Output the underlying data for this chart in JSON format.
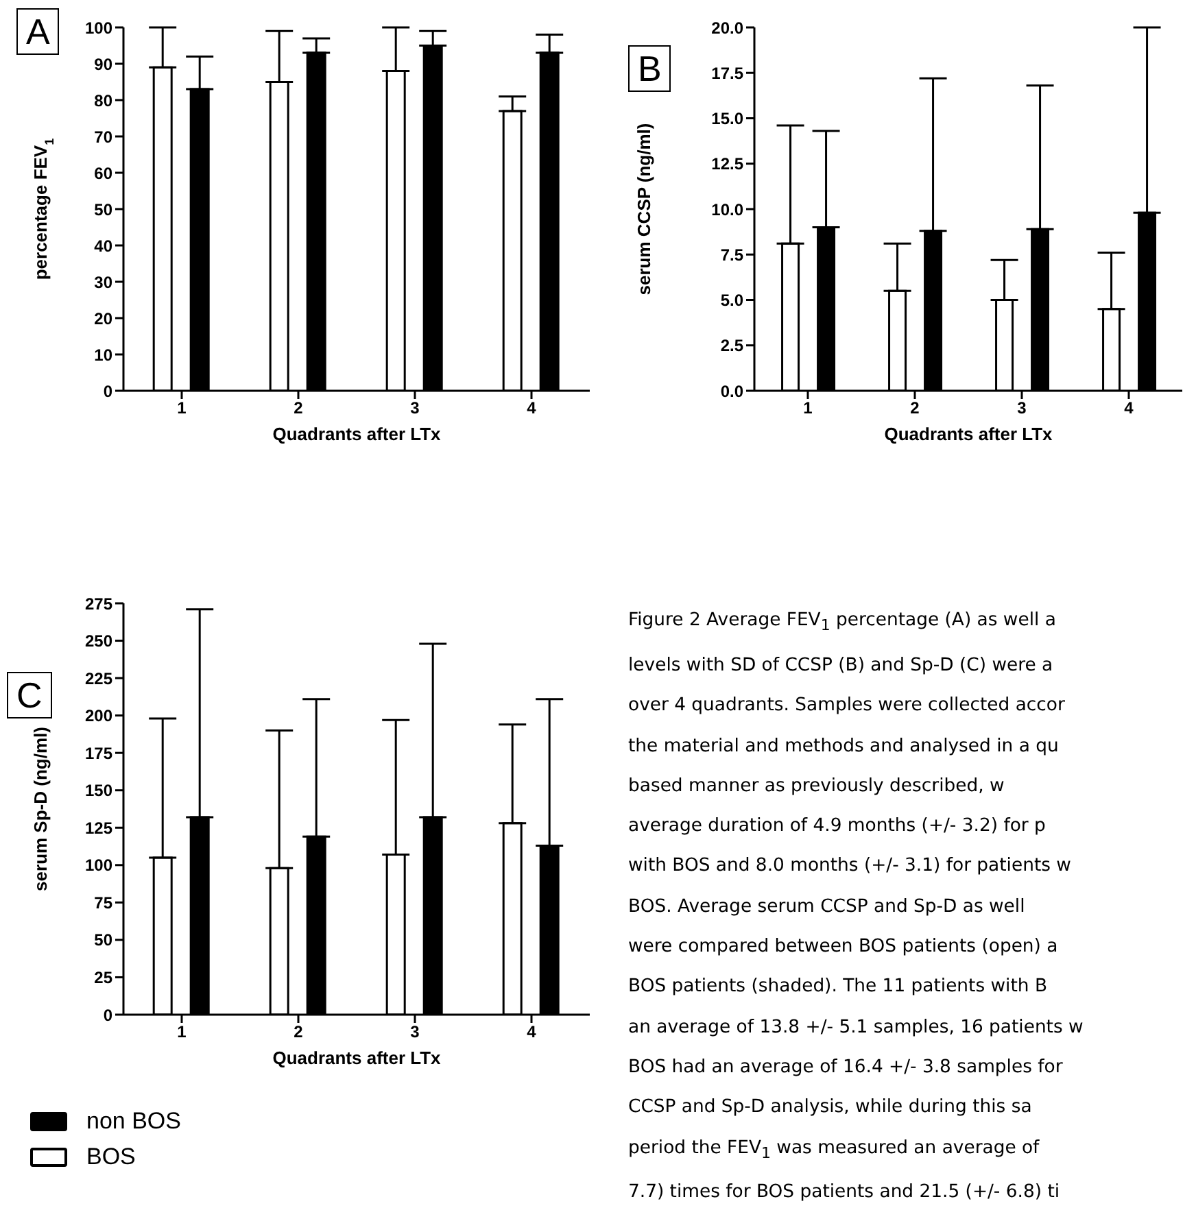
{
  "chart_data": [
    {
      "type": "bar",
      "title": "A",
      "categories": [
        "1",
        "2",
        "3",
        "4"
      ],
      "xlabel": "Quadrants after LTx",
      "ylabel": "percentage FEV$_{1}$",
      "ylim": [
        0,
        100
      ],
      "yticks": [
        0,
        10,
        20,
        30,
        40,
        50,
        60,
        70,
        80,
        90,
        100
      ],
      "series": [
        {
          "color": "#ffffff",
          "values": [
            89,
            85,
            88,
            77
          ],
          "errors": [
            [
              89,
              100
            ],
            [
              85,
              99
            ],
            [
              88,
              100
            ],
            [
              77,
              81
            ]
          ]
        },
        {
          "color": "#000000",
          "values": [
            83,
            93,
            95,
            93
          ],
          "errors": [
            [
              83,
              92
            ],
            [
              93,
              97
            ],
            [
              95,
              99
            ],
            [
              93,
              98
            ]
          ]
        }
      ]
    },
    {
      "type": "bar",
      "title": "B",
      "categories": [
        "1",
        "2",
        "3",
        "4"
      ],
      "xlabel": "Quadrants after LTx",
      "ylabel": "serum CCSP (ng/ml)",
      "ylim": [
        0,
        20
      ],
      "yticks": [
        {
          "value": 0,
          "label": "0.0"
        },
        {
          "value": 2.5,
          "label": "2.5"
        },
        {
          "value": 5,
          "label": "5.0"
        },
        {
          "value": 7.5,
          "label": "7.5"
        },
        {
          "value": 10,
          "label": "10.0"
        },
        {
          "value": 12.5,
          "label": "12.5"
        },
        {
          "value": 15,
          "label": "15.0"
        },
        {
          "value": 17.5,
          "label": "17.5"
        },
        {
          "value": 20,
          "label": "20.0"
        }
      ],
      "series": [
        {
          "color": "#ffffff",
          "values": [
            8.1,
            5.5,
            5.0,
            4.5
          ],
          "errors": [
            [
              8.1,
              14.6
            ],
            [
              5.5,
              8.1
            ],
            [
              5.0,
              7.2
            ],
            [
              4.5,
              7.6
            ]
          ]
        },
        {
          "color": "#000000",
          "values": [
            9.0,
            8.8,
            8.9,
            9.8
          ],
          "errors": [
            [
              9.0,
              14.3
            ],
            [
              8.8,
              17.2
            ],
            [
              8.9,
              16.8
            ],
            [
              9.8,
              20.0
            ]
          ]
        }
      ]
    },
    {
      "type": "bar",
      "title": "C",
      "categories": [
        "1",
        "2",
        "3",
        "4"
      ],
      "xlabel": "Quadrants after LTx",
      "ylabel": "serum Sp-D (ng/ml)",
      "ylim": [
        0,
        275
      ],
      "yticks": [
        0,
        25,
        50,
        75,
        100,
        125,
        150,
        175,
        200,
        225,
        250,
        275
      ],
      "legend": "bottom left",
      "series": [
        {
          "name": "BOS",
          "color": "#ffffff",
          "values": [
            105,
            98,
            107,
            128
          ],
          "errors": [
            [
              105,
              198
            ],
            [
              98,
              190
            ],
            [
              107,
              197
            ],
            [
              128,
              194
            ]
          ]
        },
        {
          "name": "non BOS",
          "color": "#000000",
          "values": [
            132,
            119,
            132,
            113
          ],
          "errors": [
            [
              132,
              271
            ],
            [
              119,
              211
            ],
            [
              132,
              248
            ],
            [
              113,
              211
            ]
          ]
        }
      ]
    },
    {
      "type": "other",
      "annotations": [
        "Figure 2 Average FEV$_{1}$ percentage (A) as well a",
        "levels with SD of CCSP (B) and Sp-D (C) were a",
        "over 4 quadrants. Samples were collected accor",
        "the material and methods and analysed in a qu",
        "based manner as previously described, w",
        "average duration of 4.9 months (+/- 3.2) for p",
        "with BOS and 8.0 months (+/- 3.1) for patients w",
        "BOS. Average serum CCSP and Sp-D as well",
        "were compared between BOS patients (open) a",
        "BOS patients (shaded). The 11 patients with B",
        "an average of 13.8 +/- 5.1 samples, 16 patients w",
        "BOS had an average of 16.4 +/- 3.8 samples for",
        "CCSP and Sp-D analysis, while during this sa",
        "period the FEV$_{1}$ was measured an average of",
        "7.7) times for BOS patients and 21.5 (+/- 6.8) ti"
      ]
    }
  ]
}
